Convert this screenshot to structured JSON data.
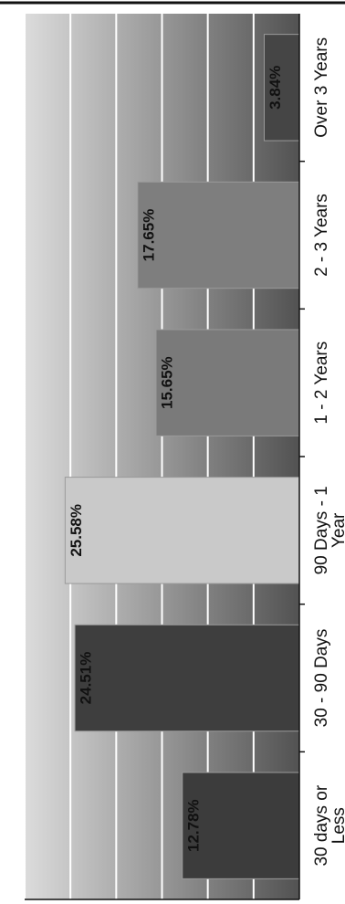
{
  "chart_data": {
    "type": "bar",
    "orientation": "vertical-bars-rotated-90-cw",
    "categories": [
      [
        "30 days or",
        "Less"
      ],
      [
        "30 - 90 Days"
      ],
      [
        "90 Days - 1",
        "Year"
      ],
      [
        "1 - 2 Years"
      ],
      [
        "2 - 3 Years"
      ],
      [
        "Over 3 Years"
      ]
    ],
    "values": [
      12.78,
      24.51,
      25.58,
      15.65,
      17.65,
      3.84
    ],
    "data_labels": [
      "12.78%",
      "24.51%",
      "25.58%",
      "15.65%",
      "17.65%",
      "3.84%"
    ],
    "ylim": [
      0,
      30
    ],
    "y_ticks": [
      "0%",
      "5%",
      "10%",
      "15%",
      "20%",
      "25%",
      "30%"
    ],
    "grid": true,
    "colors": {
      "plot_bg_light": "#dcdcdc",
      "plot_bg_dark": "#525252",
      "gridline": "#ffffff",
      "bars": [
        "#3c3c3c",
        "#3e3e3e",
        "#c9c9c9",
        "#7a7a7a",
        "#7e7e7e",
        "#454545"
      ],
      "text": "#111111"
    }
  }
}
